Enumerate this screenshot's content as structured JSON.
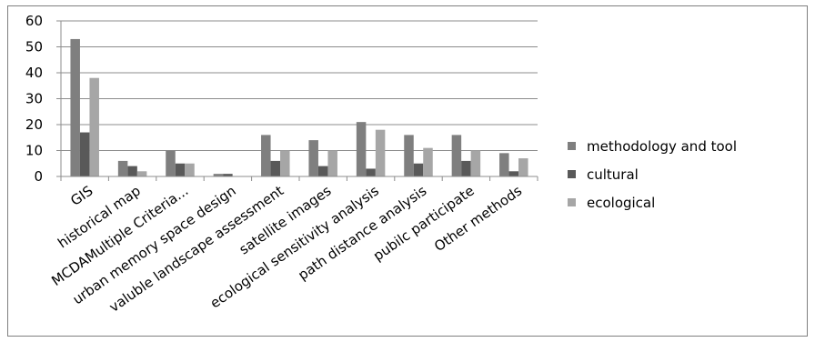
{
  "chart_data": {
    "type": "bar",
    "title": "",
    "xlabel": "",
    "ylabel": "",
    "categories": [
      "GIS",
      "historical map",
      "MCDAMultiple Criteria...",
      "urban memory space design",
      "valuble landscape assessment",
      "satellite images",
      "ecological sensitivity analysis",
      "path distance analysis",
      "pubilc participate",
      "Other methods"
    ],
    "series": [
      {
        "name": "methodology and tool",
        "color": "#7f7f7f",
        "values": [
          53,
          6,
          10,
          1,
          16,
          14,
          21,
          16,
          16,
          9
        ]
      },
      {
        "name": "cultural",
        "color": "#595959",
        "values": [
          17,
          4,
          5,
          1,
          6,
          4,
          3,
          5,
          6,
          2
        ]
      },
      {
        "name": "ecological",
        "color": "#a6a6a6",
        "values": [
          38,
          2,
          5,
          0,
          10,
          10,
          18,
          11,
          10,
          7
        ]
      }
    ],
    "ylim": [
      0,
      60
    ],
    "yticks": [
      0,
      10,
      20,
      30,
      40,
      50,
      60
    ],
    "grid": true,
    "legend": "right"
  }
}
